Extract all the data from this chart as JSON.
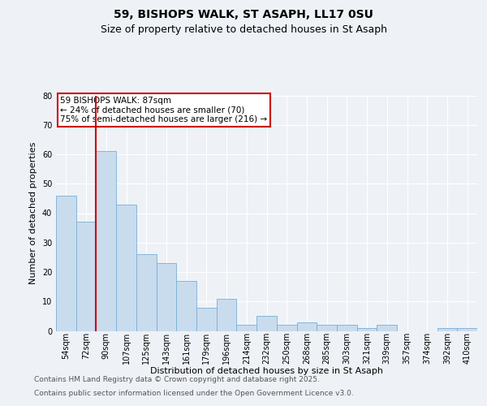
{
  "title1": "59, BISHOPS WALK, ST ASAPH, LL17 0SU",
  "title2": "Size of property relative to detached houses in St Asaph",
  "xlabel": "Distribution of detached houses by size in St Asaph",
  "ylabel": "Number of detached properties",
  "categories": [
    "54sqm",
    "72sqm",
    "90sqm",
    "107sqm",
    "125sqm",
    "143sqm",
    "161sqm",
    "179sqm",
    "196sqm",
    "214sqm",
    "232sqm",
    "250sqm",
    "268sqm",
    "285sqm",
    "303sqm",
    "321sqm",
    "339sqm",
    "357sqm",
    "374sqm",
    "392sqm",
    "410sqm"
  ],
  "values": [
    46,
    37,
    61,
    43,
    26,
    23,
    17,
    8,
    11,
    2,
    5,
    2,
    3,
    2,
    2,
    1,
    2,
    0,
    0,
    1,
    1
  ],
  "bar_color": "#c9dcee",
  "bar_edge_color": "#7aafd4",
  "vline_color": "#cc0000",
  "annotation_text": "59 BISHOPS WALK: 87sqm\n← 24% of detached houses are smaller (70)\n75% of semi-detached houses are larger (216) →",
  "annotation_box_color": "#cc0000",
  "ylim": [
    0,
    80
  ],
  "yticks": [
    0,
    10,
    20,
    30,
    40,
    50,
    60,
    70,
    80
  ],
  "footnote1": "Contains HM Land Registry data © Crown copyright and database right 2025.",
  "footnote2": "Contains public sector information licensed under the Open Government Licence v3.0.",
  "bg_color": "#eef2f7",
  "plot_bg_color": "#eef2f7",
  "grid_color": "#ffffff",
  "title_fontsize": 10,
  "subtitle_fontsize": 9,
  "axis_label_fontsize": 8,
  "tick_fontsize": 7,
  "footnote_fontsize": 6.5,
  "annotation_fontsize": 7.5,
  "vline_x_index": 2
}
